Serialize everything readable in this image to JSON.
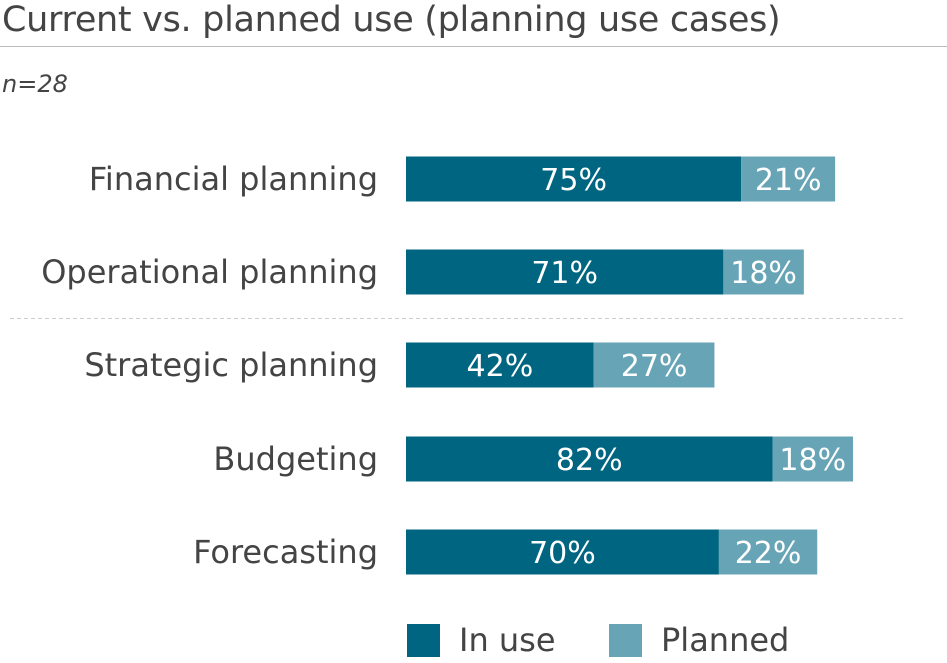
{
  "chart_data": {
    "type": "bar",
    "orientation": "horizontal",
    "stacked": true,
    "title": "Current vs. planned use (planning use cases)",
    "subtitle": "n=28",
    "categories": [
      "Financial planning",
      "Operational planning",
      "Strategic planning",
      "Budgeting",
      "Forecasting"
    ],
    "series": [
      {
        "name": "In use",
        "color": "#006580",
        "values": [
          75,
          71,
          42,
          82,
          70
        ]
      },
      {
        "name": "Planned",
        "color": "#67a4b6",
        "values": [
          21,
          18,
          27,
          18,
          22
        ]
      }
    ],
    "value_suffix": "%",
    "xlim": [
      0,
      100
    ],
    "divider_after_index": 1,
    "legend_position": "bottom"
  }
}
